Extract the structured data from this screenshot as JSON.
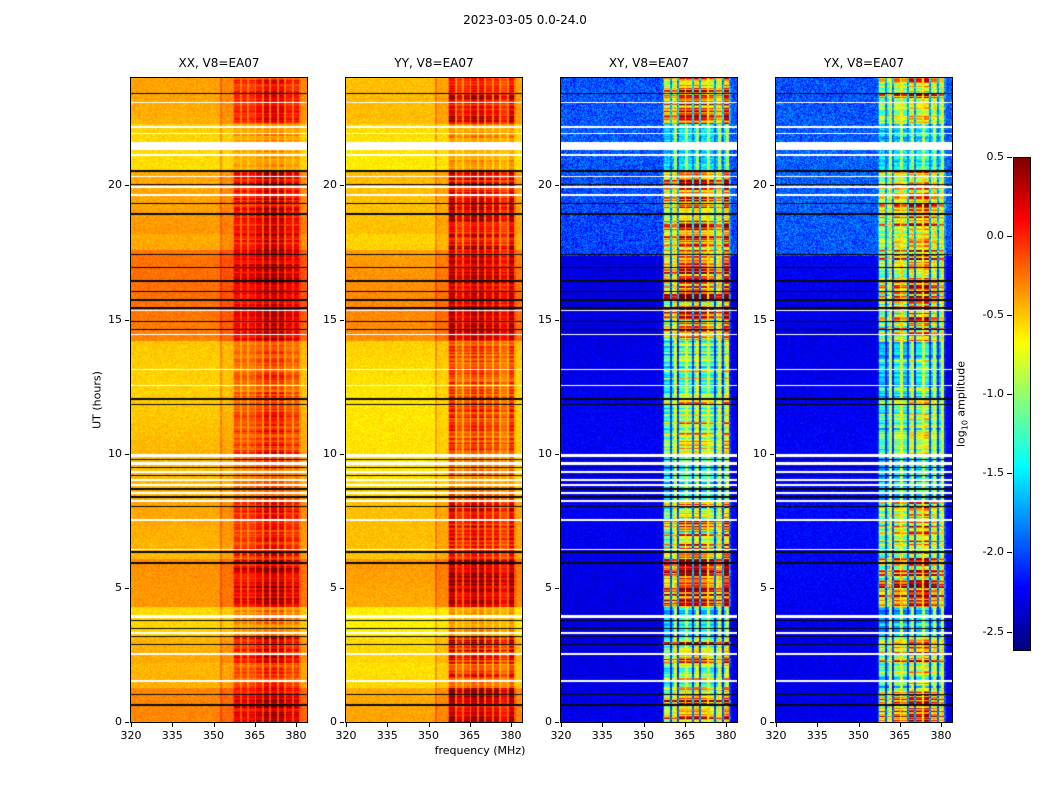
{
  "chart_data": {
    "type": "heatmap",
    "suptitle": "2023-03-05 0.0-24.0",
    "xlabel": "frequency (MHz)",
    "ylabel": "UT (hours)",
    "x_range": [
      320,
      384
    ],
    "x_tick_labels": [
      "320",
      "335",
      "350",
      "365",
      "380"
    ],
    "y_range": [
      0,
      24
    ],
    "y_tick_labels": [
      "0",
      "5",
      "10",
      "15",
      "20"
    ],
    "colorbar": {
      "label_prefix": "log",
      "label_sub": "10",
      "label_suffix": " amplitude",
      "tick_labels": [
        "0.5",
        "0.0",
        "-0.5",
        "-1.0",
        "-1.5",
        "-2.0",
        "-2.5"
      ],
      "vmin": -2.61,
      "vmax": 0.5,
      "colormap": "jet"
    },
    "panels": [
      {
        "title": "XX, V8=EA07",
        "kind": "parallel",
        "base_level": -0.52
      },
      {
        "title": "YY, V8=EA07",
        "kind": "parallel",
        "base_level": -0.6
      },
      {
        "title": "XY, V8=EA07",
        "kind": "cross",
        "base_level": -2.28
      },
      {
        "title": "YX, V8=EA07",
        "kind": "cross",
        "base_level": -2.25
      }
    ],
    "rfi_band": {
      "f_start": 357,
      "f_end": 381.5,
      "channel_spacing": 2.7
    },
    "persistent_lines_mhz": [
      361.5,
      365.5,
      369.5,
      373.5,
      377.5,
      380.3
    ],
    "narrow_line_mhz": 352.5,
    "rfi_time_envelope": [
      [
        0,
        1.3,
        0.95
      ],
      [
        1.3,
        2.2,
        0.55
      ],
      [
        2.2,
        3.2,
        0.85
      ],
      [
        3.2,
        4.3,
        0.35
      ],
      [
        4.3,
        6.1,
        1.0
      ],
      [
        6.1,
        8.2,
        0.75
      ],
      [
        8.2,
        10.0,
        0.35
      ],
      [
        10.0,
        12.2,
        0.6
      ],
      [
        12.2,
        14.2,
        0.5
      ],
      [
        14.2,
        17.6,
        0.9
      ],
      [
        17.6,
        20.6,
        0.85
      ],
      [
        20.6,
        22.3,
        0.25
      ],
      [
        22.3,
        24.0,
        0.8
      ]
    ],
    "bright_intervals": [
      [
        0.0,
        1.3,
        0.06
      ],
      [
        4.3,
        6.1,
        0.1
      ],
      [
        14.2,
        17.6,
        0.14
      ],
      [
        18.2,
        20.6,
        0.07
      ]
    ],
    "white_gaps": [
      [
        23.1,
        0.05
      ],
      [
        22.2,
        0.07
      ],
      [
        21.95,
        0.07
      ],
      [
        21.5,
        0.3
      ],
      [
        21.15,
        0.07
      ],
      [
        20.35,
        0.07
      ],
      [
        19.95,
        0.06
      ],
      [
        19.65,
        0.06
      ],
      [
        15.35,
        0.05
      ],
      [
        14.45,
        0.05
      ],
      [
        13.15,
        0.05
      ],
      [
        12.55,
        0.05
      ],
      [
        9.95,
        0.08
      ],
      [
        9.65,
        0.08
      ],
      [
        9.35,
        0.08
      ],
      [
        9.05,
        0.07
      ],
      [
        8.85,
        0.07
      ],
      [
        8.55,
        0.07
      ],
      [
        8.25,
        0.07
      ],
      [
        7.55,
        0.05
      ],
      [
        6.45,
        0.05
      ],
      [
        3.95,
        0.1
      ],
      [
        3.35,
        0.07
      ],
      [
        2.55,
        0.05
      ],
      [
        1.55,
        0.05
      ]
    ],
    "black_lines": [
      [
        23.45,
        0.05
      ],
      [
        20.55,
        0.05
      ],
      [
        20.05,
        0.05
      ],
      [
        19.35,
        0.05
      ],
      [
        18.95,
        0.05
      ],
      [
        17.45,
        0.05
      ],
      [
        16.95,
        0.05
      ],
      [
        16.45,
        0.05
      ],
      [
        16.05,
        0.05
      ],
      [
        15.75,
        0.05
      ],
      [
        15.45,
        0.05
      ],
      [
        14.95,
        0.05
      ],
      [
        14.65,
        0.05
      ],
      [
        12.05,
        0.05
      ],
      [
        11.85,
        0.05
      ],
      [
        9.8,
        0.05
      ],
      [
        9.5,
        0.05
      ],
      [
        9.2,
        0.05
      ],
      [
        8.7,
        0.05
      ],
      [
        8.4,
        0.05
      ],
      [
        8.05,
        0.05
      ],
      [
        6.35,
        0.05
      ],
      [
        5.95,
        0.05
      ],
      [
        3.8,
        0.05
      ],
      [
        3.5,
        0.05
      ],
      [
        3.2,
        0.05
      ],
      [
        2.9,
        0.05
      ],
      [
        1.05,
        0.05
      ],
      [
        0.65,
        0.05
      ]
    ]
  }
}
